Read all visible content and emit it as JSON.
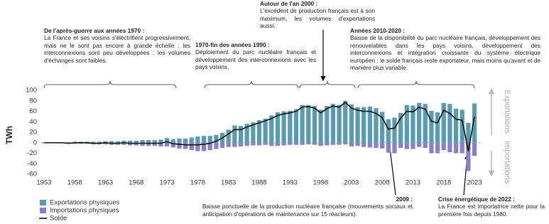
{
  "chart_data": {
    "type": "bar-line",
    "y_label": "TWh",
    "x": [
      1953,
      1954,
      1955,
      1956,
      1957,
      1958,
      1959,
      1960,
      1961,
      1962,
      1963,
      1964,
      1965,
      1966,
      1967,
      1968,
      1969,
      1970,
      1971,
      1972,
      1973,
      1974,
      1975,
      1976,
      1977,
      1978,
      1979,
      1980,
      1981,
      1982,
      1983,
      1984,
      1985,
      1986,
      1987,
      1988,
      1989,
      1990,
      1991,
      1992,
      1993,
      1994,
      1995,
      1996,
      1997,
      1998,
      1999,
      2000,
      2001,
      2002,
      2003,
      2004,
      2005,
      2006,
      2007,
      2008,
      2009,
      2010,
      2011,
      2012,
      2013,
      2014,
      2015,
      2016,
      2017,
      2018,
      2019,
      2020,
      2021,
      2022,
      2023
    ],
    "xlim": [
      1952,
      2024
    ],
    "xticks": [
      1953,
      1958,
      1963,
      1968,
      1973,
      1978,
      1983,
      1988,
      1993,
      1998,
      2003,
      2008,
      2013,
      2018,
      2023
    ],
    "ylim": [
      -60,
      100
    ],
    "yticks": [
      -60,
      -40,
      -20,
      0,
      20,
      40,
      60,
      80,
      100
    ],
    "series": [
      {
        "name": "Exportations physiques",
        "color": "#5b9bb0",
        "kind": "bar",
        "values": [
          1,
          1,
          1,
          1,
          1,
          2,
          2,
          2,
          2,
          2,
          3,
          3,
          3,
          4,
          4,
          4,
          5,
          5,
          5,
          6,
          9,
          7,
          8,
          8,
          10,
          12,
          13,
          13,
          15,
          19,
          25,
          33,
          32,
          36,
          39,
          43,
          46,
          52,
          58,
          60,
          61,
          64,
          72,
          72,
          70,
          63,
          70,
          74,
          72,
          80,
          73,
          68,
          68,
          69,
          66,
          59,
          45,
          48,
          57,
          72,
          71,
          76,
          74,
          61,
          58,
          76,
          74,
          65,
          63,
          38,
          75
        ]
      },
      {
        "name": "Importations physiques",
        "color": "#8a80c8",
        "kind": "bar",
        "values": [
          -1,
          -1,
          -1,
          -1,
          -2,
          -2,
          -2,
          -2,
          -3,
          -3,
          -3,
          -4,
          -4,
          -4,
          -5,
          -5,
          -6,
          -6,
          -6,
          -7,
          -7,
          -9,
          -11,
          -12,
          -14,
          -16,
          -16,
          -14,
          -12,
          -10,
          -8,
          -8,
          -7,
          -6,
          -5,
          -5,
          -4,
          -6,
          -6,
          -5,
          -4,
          -4,
          -4,
          -3,
          -4,
          -6,
          -5,
          -4,
          -4,
          -3,
          -7,
          -6,
          -8,
          -9,
          -10,
          -11,
          -19,
          -20,
          -10,
          -12,
          -12,
          -8,
          -10,
          -20,
          -20,
          -14,
          -18,
          -20,
          -20,
          -54,
          -25
        ]
      },
      {
        "name": "Solde",
        "color": "#111111",
        "kind": "line",
        "values": [
          0,
          0,
          0,
          0,
          -1,
          0,
          0,
          0,
          -1,
          -1,
          0,
          -1,
          -1,
          0,
          -1,
          -1,
          -1,
          -1,
          -1,
          -1,
          2,
          -2,
          -3,
          -4,
          -4,
          -4,
          -3,
          -1,
          3,
          9,
          17,
          25,
          25,
          30,
          34,
          38,
          42,
          46,
          52,
          55,
          57,
          60,
          68,
          69,
          66,
          57,
          65,
          70,
          68,
          77,
          66,
          62,
          60,
          60,
          56,
          48,
          26,
          28,
          47,
          60,
          59,
          68,
          64,
          41,
          38,
          62,
          56,
          45,
          43,
          -16,
          50
        ]
      }
    ],
    "side_labels": [
      "Exportations",
      "Importations"
    ],
    "annotations": [
      {
        "title": "De l'après-guerre aux années 1970 :",
        "text": "La France et ses voisins s'électrifient progressivement, mais ne le sont pas encore à grande échelle ; les interconnexions sont peu développées : les volumes d'échanges sont faibles."
      },
      {
        "title": "1970-fin des années 1990 :",
        "text": "Déploiement du parc nucléaire français et développement des interconnexions avec les pays voisins."
      },
      {
        "title": "Autour de l'an 2000 :",
        "text": "L'excédent de production français est à son maximum, les volumes d'exportations aussi."
      },
      {
        "title": "Années 2010-2020 :",
        "text": "Baisse de la disponibilité du parc nucléaire français, développement des renouvelables dans les pays voisins, développement des interconnexions et intégration croissante du système électrique européen : le solde français reste exportateur, mais moins qu'avant et de manière plus variable."
      },
      {
        "title": "2009 :",
        "text": "Baisse ponctuelle de la production nucléaire française (mouvements sociaux et anticipation d'opérations de maintenance sur 15 réacteurs)."
      },
      {
        "title": "Crise énergétique de 2022 :",
        "text": "La France est importatrice nette pour la première fois depuis 1980."
      }
    ]
  }
}
